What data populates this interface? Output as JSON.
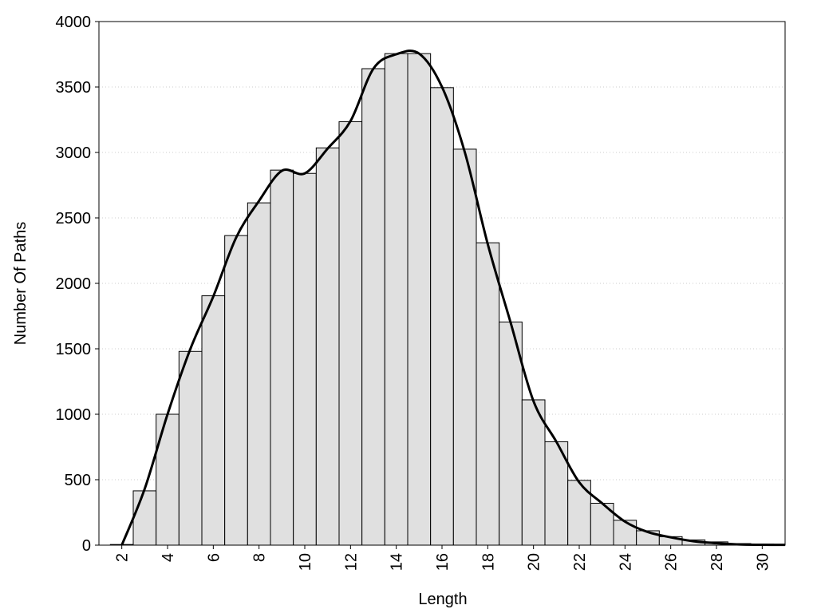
{
  "chart_data": {
    "type": "histogram",
    "xlabel": "Length",
    "ylabel": "Number Of Paths",
    "bins": [
      1.5,
      2.5,
      3.5,
      4.5,
      5.5,
      6.5,
      7.5,
      8.5,
      9.5,
      10.5,
      11.5,
      12.5,
      13.5,
      14.5,
      15.5,
      16.5,
      17.5,
      18.5,
      19.5,
      20.5,
      21.5,
      22.5,
      23.5,
      24.5,
      25.5,
      26.5,
      27.5,
      28.5,
      29.5,
      30.5
    ],
    "counts": [
      5,
      415,
      1000,
      1480,
      1905,
      2365,
      2615,
      2865,
      2840,
      3035,
      3235,
      3640,
      3755,
      3755,
      3495,
      3025,
      2310,
      1705,
      1110,
      790,
      495,
      320,
      190,
      110,
      65,
      40,
      25,
      12,
      8
    ],
    "bar_color": "#e0e0e0",
    "line": {
      "x": [
        2,
        3,
        4,
        5,
        6,
        7,
        8,
        9,
        10,
        11,
        12,
        13,
        14,
        15,
        16,
        17,
        18,
        19,
        20,
        21,
        22,
        23,
        24,
        25,
        26,
        27,
        28,
        29,
        30,
        31
      ],
      "values": [
        0,
        430,
        1000,
        1500,
        1900,
        2350,
        2630,
        2860,
        2840,
        3030,
        3240,
        3640,
        3750,
        3755,
        3500,
        3000,
        2300,
        1700,
        1100,
        790,
        480,
        320,
        180,
        100,
        60,
        30,
        15,
        5,
        3,
        2
      ],
      "color": "#000000"
    },
    "xlim": [
      1,
      31
    ],
    "ylim": [
      0,
      4000
    ],
    "xticks": [
      2,
      4,
      6,
      8,
      10,
      12,
      14,
      16,
      18,
      20,
      22,
      24,
      26,
      28,
      30
    ],
    "yticks": [
      0,
      500,
      1000,
      1500,
      2000,
      2500,
      3000,
      3500,
      4000
    ],
    "grid": true
  }
}
